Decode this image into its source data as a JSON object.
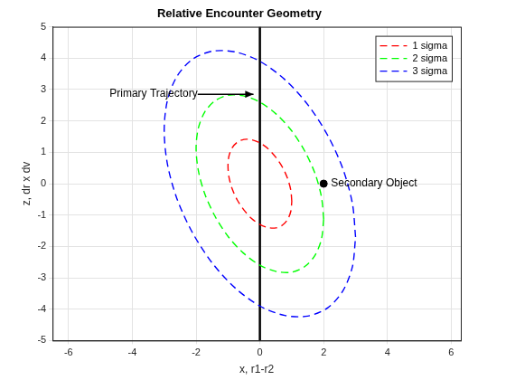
{
  "chart_data": {
    "type": "scatter",
    "title": "Relative Encounter Geometry",
    "x_label": "x, r1-r2",
    "y_label": "z, dr x dv",
    "xlim": [
      -6.5,
      6.3
    ],
    "xticks": [
      -6,
      -4,
      -2,
      0,
      2,
      4,
      6
    ],
    "ylim": [
      -5,
      5
    ],
    "yticks": [
      -5,
      -4,
      -3,
      -2,
      -1,
      0,
      1,
      2,
      3,
      4,
      5
    ],
    "grid": true,
    "legend": "northeast",
    "series": [
      {
        "name": "1 sigma",
        "color": "#ff0000",
        "line_style": "dashed",
        "x": [
          1,
          0.97,
          0.87,
          0.71,
          0.5,
          0.26,
          0,
          -0.26,
          -0.5,
          -0.71,
          -0.87,
          -0.97,
          -1,
          -0.97,
          -0.87,
          -0.71,
          -0.5,
          -0.26,
          0,
          0.26,
          0.5,
          0.71,
          0.87,
          0.97,
          1
        ],
        "y": [
          -0.57,
          -0.21,
          0.16,
          0.52,
          0.84,
          1.11,
          1.3,
          1.4,
          1.41,
          1.32,
          1.14,
          0.88,
          0.57,
          0.21,
          -0.16,
          -0.52,
          -0.84,
          -1.11,
          -1.3,
          -1.4,
          -1.41,
          -1.32,
          -1.14,
          -0.88,
          -0.57
        ]
      },
      {
        "name": "2 sigma",
        "color": "#00ff00",
        "line_style": "dashed",
        "x": [
          2,
          1.93,
          1.73,
          1.41,
          1,
          0.52,
          0,
          -0.52,
          -1,
          -1.41,
          -1.73,
          -1.93,
          -2,
          -1.93,
          -1.73,
          -1.41,
          -1,
          -0.52,
          0,
          0.52,
          1,
          1.41,
          1.73,
          1.93,
          2
        ],
        "y": [
          -1.13,
          -0.42,
          0.32,
          1.03,
          1.68,
          2.21,
          2.6,
          2.8,
          2.82,
          2.64,
          2.28,
          1.77,
          1.13,
          0.42,
          -0.32,
          -1.03,
          -1.68,
          -2.21,
          -2.6,
          -2.8,
          -2.82,
          -2.64,
          -2.28,
          -1.77,
          -1.13
        ]
      },
      {
        "name": "3 sigma",
        "color": "#0000ff",
        "line_style": "dashed",
        "x": [
          3,
          2.9,
          2.6,
          2.12,
          1.5,
          0.78,
          0,
          -0.78,
          -1.5,
          -2.12,
          -2.6,
          -2.9,
          -3,
          -2.9,
          -2.6,
          -2.12,
          -1.5,
          -0.78,
          0,
          0.78,
          1.5,
          2.12,
          2.6,
          2.9,
          3
        ],
        "y": [
          -1.7,
          -0.63,
          0.48,
          1.55,
          2.52,
          3.32,
          3.9,
          4.2,
          4.22,
          3.96,
          3.42,
          2.65,
          1.7,
          0.63,
          -0.48,
          -1.55,
          -2.52,
          -3.32,
          -3.9,
          -4.2,
          -4.22,
          -3.96,
          -3.42,
          -2.65,
          -1.7
        ]
      }
    ],
    "trajectory": {
      "color": "#000000",
      "line_style": "solid",
      "x": [
        0,
        0
      ],
      "y": [
        -5,
        5
      ]
    },
    "secondary_object": {
      "label": "Secondary Object",
      "x": 2,
      "y": 0,
      "color": "#000000",
      "marker": "circle"
    },
    "annotation": {
      "text": "Primary Trajectory",
      "x": -1.95,
      "y": 2.85,
      "arrow_to": [
        -0.2,
        2.85
      ]
    }
  }
}
